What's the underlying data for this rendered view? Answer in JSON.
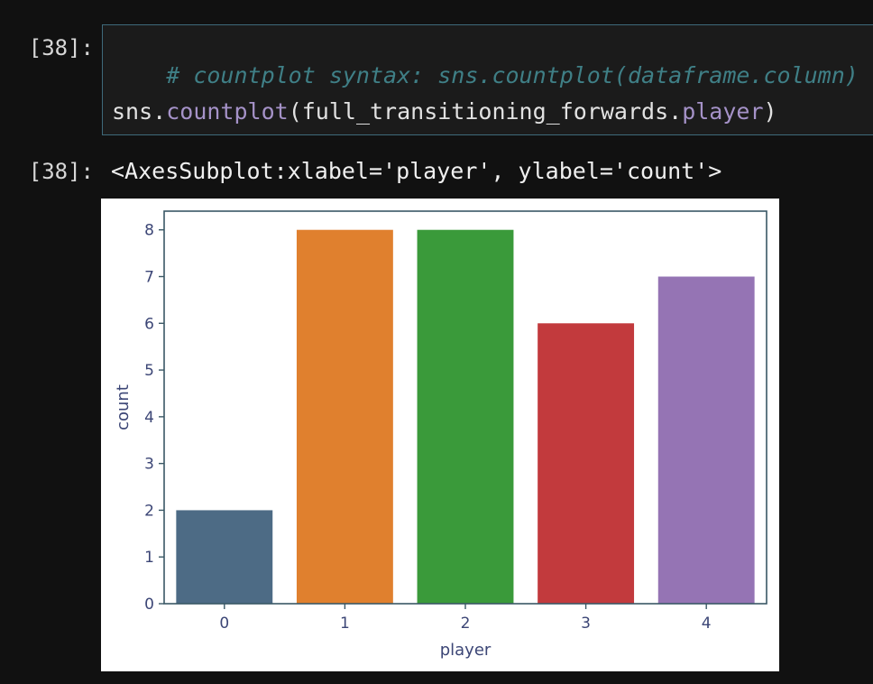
{
  "input_prompt": "[38]:",
  "output_prompt": "[38]:",
  "code": {
    "comment": "# countplot syntax: sns.countplot(dataframe.column)",
    "line2": {
      "module": "sns.",
      "func": "countplot",
      "open": "(full_transitioning_forwards.",
      "attr": "player",
      "close": ")"
    }
  },
  "output_repr": "<AxesSubplot:xlabel='player', ylabel='count'>",
  "colors": {
    "background": "#111111",
    "comment": "#3f7f86",
    "attribute": "#a592c8",
    "cell_border": "#3f6a7a"
  },
  "chart_data": {
    "type": "bar",
    "categories": [
      "0",
      "1",
      "2",
      "3",
      "4"
    ],
    "values": [
      2,
      8,
      8,
      6,
      7
    ],
    "colors": [
      "#4d6b85",
      "#e0802e",
      "#3a9a3a",
      "#c23a3d",
      "#9574b4"
    ],
    "xlabel": "player",
    "ylabel": "count",
    "ylim": [
      0,
      8.4
    ],
    "yticks": [
      "0",
      "1",
      "2",
      "3",
      "4",
      "5",
      "6",
      "7",
      "8"
    ],
    "grid": false,
    "legend": "none"
  }
}
